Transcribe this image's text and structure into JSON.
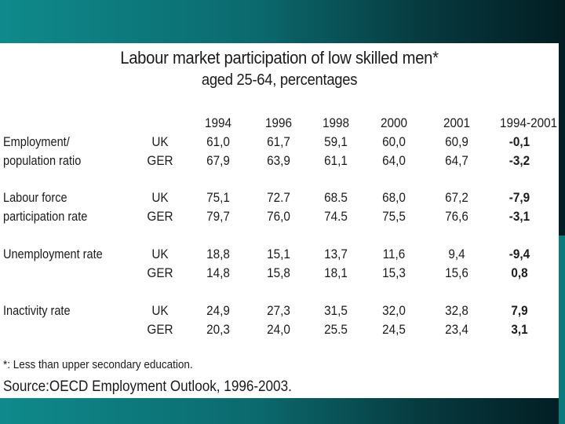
{
  "title": "Labour market participation of low skilled men*",
  "subtitle": "aged 25-64, percentages",
  "years": [
    "1994",
    "1996",
    "1998",
    "2000",
    "2001",
    "1994-2001"
  ],
  "rows": [
    {
      "label_line1": "Employment/",
      "label_line2": "population ratio",
      "uk": {
        "country": "UK",
        "values": [
          "61,0",
          "61,7",
          "59,1",
          "60,0",
          "60,9",
          "-0,1"
        ]
      },
      "ger": {
        "country": "GER",
        "values": [
          "67,9",
          "63,9",
          "61,1",
          "64,0",
          "64,7",
          "-3,2"
        ]
      }
    },
    {
      "label_line1": "Labour force",
      "label_line2": "participation rate",
      "uk": {
        "country": "UK",
        "values": [
          "75,1",
          "72.7",
          "68.5",
          "68,0",
          "67,2",
          "-7,9"
        ]
      },
      "ger": {
        "country": "GER",
        "values": [
          "79,7",
          "76,0",
          "74.5",
          "75,5",
          "76,6",
          "-3,1"
        ]
      }
    },
    {
      "label_line1": "Unemployment rate",
      "label_line2": "",
      "uk": {
        "country": "UK",
        "values": [
          "18,8",
          "15,1",
          "13,7",
          "11,6",
          "9,4",
          "-9,4"
        ]
      },
      "ger": {
        "country": "GER",
        "values": [
          "14,8",
          "15,8",
          "18,1",
          "15,3",
          "15,6",
          "0,8"
        ]
      }
    },
    {
      "label_line1": "Inactivity rate",
      "label_line2": "",
      "uk": {
        "country": "UK",
        "values": [
          "24,9",
          "27,3",
          "31,5",
          "32,0",
          "32,8",
          "7,9"
        ]
      },
      "ger": {
        "country": "GER",
        "values": [
          "20,3",
          "24,0",
          "25.5",
          "24,5",
          "23,4",
          "3,1"
        ]
      }
    }
  ],
  "footnote": "*: Less than upper secondary education.",
  "source": "Source:OECD Employment Outlook, 1996-2003."
}
